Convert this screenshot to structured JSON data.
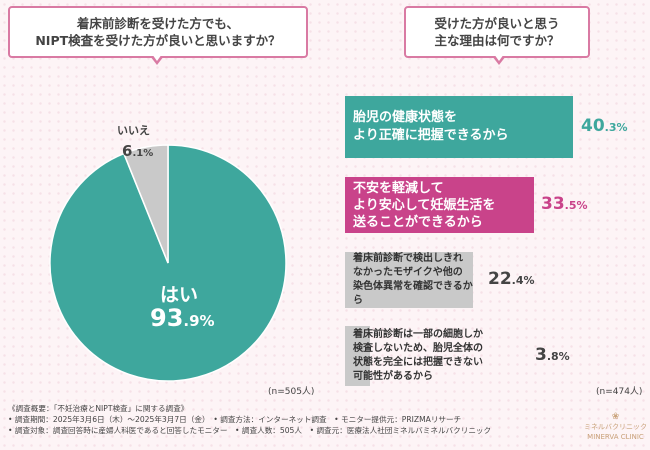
{
  "left_question": {
    "line1": "着床前診断を受けた方でも、",
    "line2": "NIPT検査を受けた方が良いと思いますか？"
  },
  "right_question": {
    "line1": "受けた方が良いと思う",
    "line2": "主な理由は何ですか？"
  },
  "colors": {
    "teal": "#3ea79d",
    "magenta": "#c9438a",
    "gray": "#c9c9c9",
    "pink_border": "#d97aa3"
  },
  "pie": {
    "yes_label": "はい",
    "yes_int": "93",
    "yes_dec": ".9%",
    "no_label": "いいえ",
    "no_int": "6",
    "no_dec": ".1%"
  },
  "bars": [
    {
      "line1": "胎児の健康状態を",
      "line2": "より正確に把握できるから",
      "pct_int": "40",
      "pct_dec": ".3%"
    },
    {
      "line1": "不安を軽減して",
      "line2": "より安心して妊娠生活を",
      "line3": "送ることができるから",
      "pct_int": "33",
      "pct_dec": ".5%"
    },
    {
      "line1": "着床前診断で検出しきれ",
      "line2": "なかったモザイクや他の",
      "line3": "染色体異常を確認できるから",
      "pct_int": "22",
      "pct_dec": ".4%"
    },
    {
      "line1": "着床前診断は一部の細胞しか",
      "line2": "検査しないため、胎児全体の",
      "line3": "状態を完全には把握できない",
      "line4": "可能性があるから",
      "pct_int": "3",
      "pct_dec": ".8%"
    }
  ],
  "n_left": "(n=505人)",
  "n_right": "(n=474人)",
  "footer": {
    "line1": "《調査概要：「不妊治療とNIPT検査」に関する調査》",
    "line2": "• 調査期間：2025年3月6日（木）〜2025年3月7日（金）　• 調査方法：インターネット調査　• モニター提供元：PRIZMAリサーチ",
    "line3": "• 調査対象：調査回答時に産婦人科医であると回答したモニター　• 調査人数：505人　• 調査元：医療法人社団ミネルバミネルバクリニック"
  },
  "logo": {
    "jp": "ミネルバクリニック",
    "en": "MINERVA CLINIC"
  },
  "chart_data": [
    {
      "type": "pie",
      "title": "着床前診断を受けた方でも、NIPT検査を受けた方が良いと思いますか？",
      "categories": [
        "はい",
        "いいえ"
      ],
      "values": [
        93.9,
        6.1
      ],
      "note": "(n=505人)"
    },
    {
      "type": "bar",
      "title": "受けた方が良いと思う主な理由は何ですか？",
      "categories": [
        "胎児の健康状態をより正確に把握できるから",
        "不安を軽減してより安心して妊娠生活を送ることができるから",
        "着床前診断で検出しきれなかったモザイクや他の染色体異常を確認できるから",
        "着床前診断は一部の細胞しか検査しないため、胎児全体の状態を完全には把握できない可能性があるから"
      ],
      "values": [
        40.3,
        33.5,
        22.4,
        3.8
      ],
      "note": "(n=474人)"
    }
  ]
}
